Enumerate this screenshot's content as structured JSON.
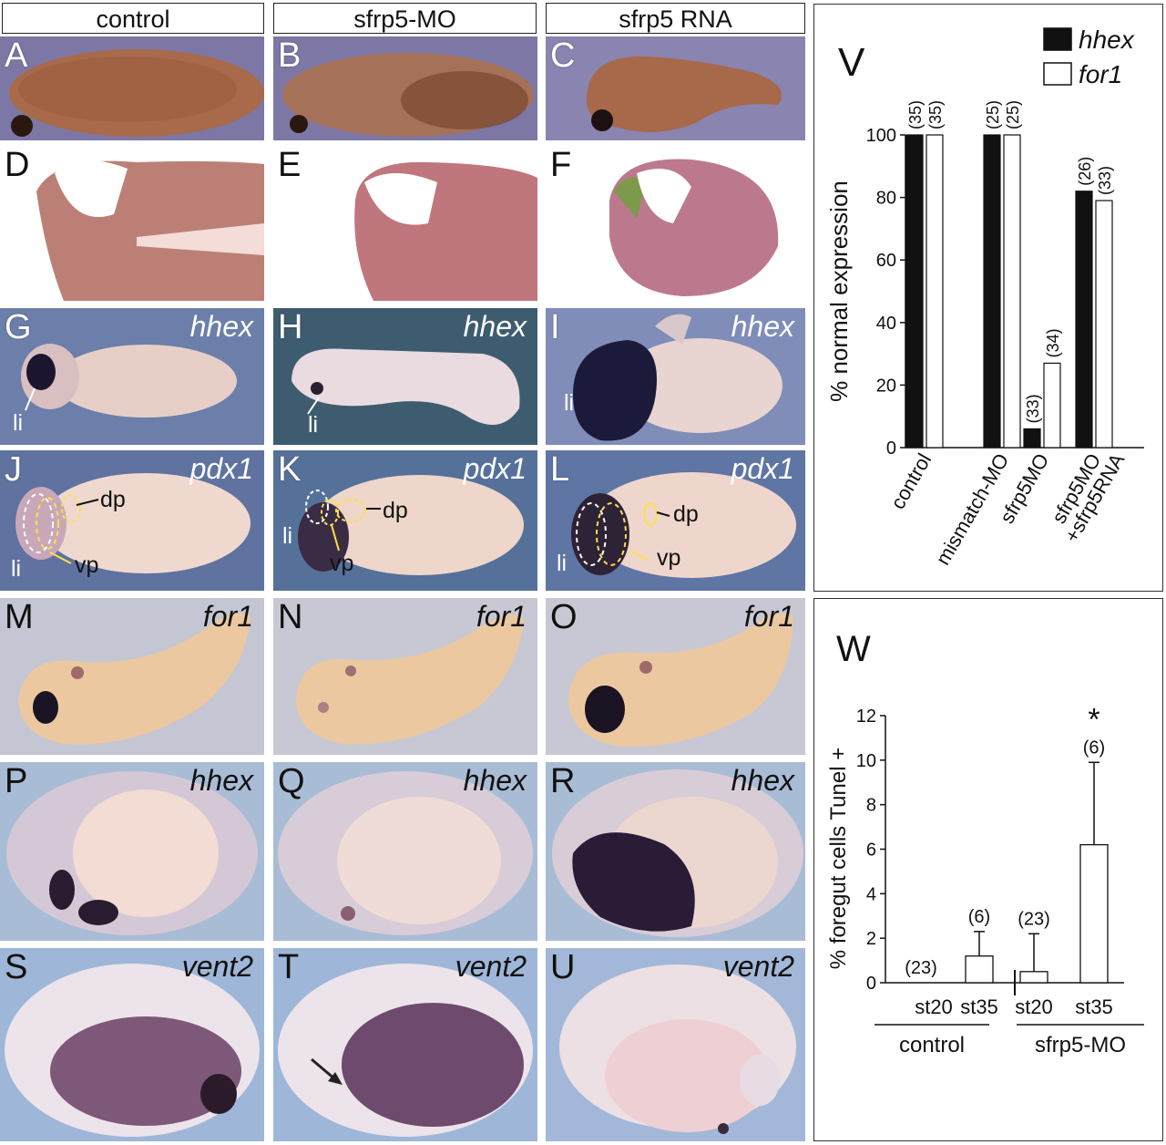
{
  "columns": [
    "control",
    "sfrp5-MO",
    "sfrp5 RNA"
  ],
  "panels": {
    "A": "A",
    "B": "B",
    "C": "C",
    "D": "D",
    "E": "E",
    "F": "F",
    "G": "G",
    "H": "H",
    "I": "I",
    "J": "J",
    "K": "K",
    "L": "L",
    "M": "M",
    "N": "N",
    "O": "O",
    "P": "P",
    "Q": "Q",
    "R": "R",
    "S": "S",
    "T": "T",
    "U": "U"
  },
  "genes": {
    "hhex": "hhex",
    "pdx1": "pdx1",
    "for1": "for1",
    "vent2": "vent2"
  },
  "annotations": {
    "li": "li",
    "dp": "dp",
    "vp": "vp"
  },
  "chart_V": {
    "type": "bar",
    "panel_label": "V",
    "categories": [
      "control",
      "mismatch-MO",
      "sfrp5MO",
      "sfrp5MO\n+sfrp5RNA"
    ],
    "category_lines": [
      [
        "control"
      ],
      [
        "mismatch-MO"
      ],
      [
        "sfrp5MO"
      ],
      [
        "sfrp5MO",
        "+sfrp5RNA"
      ]
    ],
    "series": [
      {
        "name": "hhex",
        "color": "#111111",
        "values": [
          100,
          100,
          6,
          82
        ],
        "n": [
          "(35)",
          "(25)",
          "(33)",
          "(26)"
        ]
      },
      {
        "name": "for1",
        "color": "#ffffff",
        "values": [
          100,
          100,
          27,
          79
        ],
        "n": [
          "(35)",
          "(25)",
          "(34)",
          "(33)"
        ]
      }
    ],
    "ylabel": "% normal expression",
    "ylim": [
      0,
      100
    ],
    "yticks": [
      "0",
      "20",
      "40",
      "60",
      "80",
      "100"
    ],
    "legend_position": "top-right"
  },
  "chart_W": {
    "type": "bar",
    "panel_label": "W",
    "categories": [
      "st20",
      "st35",
      "st20",
      "st35"
    ],
    "groups": [
      "control",
      "sfrp5-MO"
    ],
    "values": [
      0,
      1.2,
      0.5,
      6.2
    ],
    "errors": [
      0,
      1.1,
      1.7,
      3.7
    ],
    "n": [
      "(23)",
      "(6)",
      "(23)",
      "(6)"
    ],
    "significance": [
      "",
      "",
      "",
      "*"
    ],
    "ylabel": "% foregut cells Tunel +",
    "ylim": [
      0,
      12
    ],
    "yticks": [
      "0",
      "2",
      "4",
      "6",
      "8",
      "10",
      "12"
    ]
  }
}
